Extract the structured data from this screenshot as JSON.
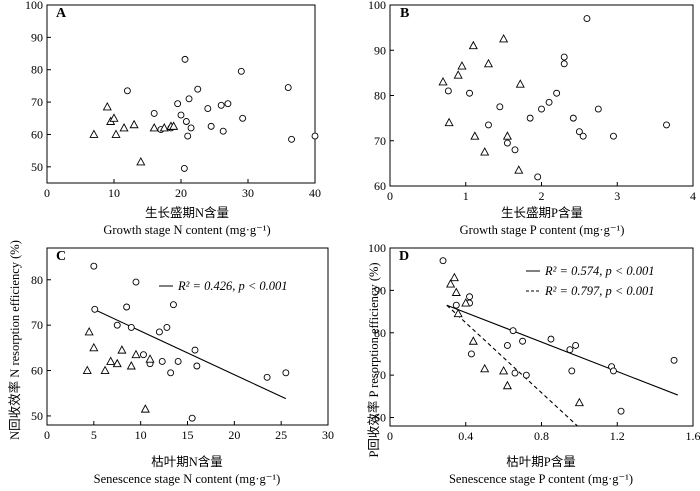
{
  "chart_data": [
    {
      "panel": "A",
      "type": "scatter",
      "xlabel_cn": "生长盛期N含量",
      "xlabel_en": "Growth stage N content (mg·g⁻¹)",
      "xlim": [
        0,
        40
      ],
      "xticks": [
        "0",
        "10",
        "20",
        "30",
        "40"
      ],
      "ylim": [
        45,
        100
      ],
      "yticks": [
        "50",
        "60",
        "70",
        "80",
        "90",
        "100"
      ],
      "series": [
        {
          "marker": "circle",
          "points": [
            [
              12,
              73.5
            ],
            [
              16,
              66.5
            ],
            [
              17,
              61.5
            ],
            [
              18.5,
              62
            ],
            [
              19.5,
              69.5
            ],
            [
              20,
              66
            ],
            [
              20.5,
              49.5
            ],
            [
              20.6,
              83.2
            ],
            [
              20.8,
              64
            ],
            [
              21,
              59.5
            ],
            [
              21.2,
              71
            ],
            [
              21.5,
              62
            ],
            [
              22.5,
              74
            ],
            [
              24,
              68
            ],
            [
              24.5,
              62.5
            ],
            [
              26,
              69
            ],
            [
              26.3,
              61
            ],
            [
              27,
              69.5
            ],
            [
              29,
              79.5
            ],
            [
              29.2,
              65
            ],
            [
              36,
              74.5
            ],
            [
              36.5,
              58.5
            ],
            [
              40,
              59.5
            ]
          ]
        },
        {
          "marker": "triangle",
          "points": [
            [
              7,
              60
            ],
            [
              9,
              68.5
            ],
            [
              9.5,
              64
            ],
            [
              10,
              65
            ],
            [
              10.3,
              60
            ],
            [
              11.5,
              62
            ],
            [
              13,
              63
            ],
            [
              14,
              51.5
            ],
            [
              16,
              62
            ],
            [
              17.5,
              62
            ],
            [
              18.5,
              62.5
            ],
            [
              18.9,
              62.5
            ]
          ]
        }
      ]
    },
    {
      "panel": "B",
      "type": "scatter",
      "xlabel_cn": "生长盛期P含量",
      "xlabel_en": "Growth stage P content (mg·g⁻¹)",
      "xlim": [
        0,
        4
      ],
      "xticks": [
        "0",
        "1",
        "2",
        "3",
        "4"
      ],
      "ylim": [
        60,
        100
      ],
      "yticks": [
        "60",
        "70",
        "80",
        "90",
        "100"
      ],
      "series": [
        {
          "marker": "circle",
          "points": [
            [
              0.77,
              81
            ],
            [
              1.05,
              80.5
            ],
            [
              1.3,
              73.5
            ],
            [
              1.45,
              77.5
            ],
            [
              1.55,
              69.5
            ],
            [
              1.65,
              68
            ],
            [
              1.85,
              75
            ],
            [
              1.95,
              62
            ],
            [
              2.0,
              77
            ],
            [
              2.1,
              78.5
            ],
            [
              2.2,
              80.5
            ],
            [
              2.3,
              88.5
            ],
            [
              2.3,
              87
            ],
            [
              2.42,
              75
            ],
            [
              2.5,
              72
            ],
            [
              2.55,
              71
            ],
            [
              2.6,
              97
            ],
            [
              2.75,
              77
            ],
            [
              2.95,
              71
            ],
            [
              3.65,
              73.5
            ]
          ]
        },
        {
          "marker": "triangle",
          "points": [
            [
              0.7,
              83
            ],
            [
              0.78,
              74
            ],
            [
              0.9,
              84.5
            ],
            [
              0.95,
              86.5
            ],
            [
              1.1,
              91
            ],
            [
              1.12,
              71
            ],
            [
              1.25,
              67.5
            ],
            [
              1.3,
              87
            ],
            [
              1.5,
              92.5
            ],
            [
              1.55,
              71
            ],
            [
              1.7,
              63.5
            ],
            [
              1.72,
              82.5
            ]
          ]
        }
      ]
    },
    {
      "panel": "C",
      "type": "scatter",
      "xlabel_cn": "枯叶期N含量",
      "xlabel_en": "Senescence stage N content (mg·g⁻¹)",
      "xlim": [
        0,
        30
      ],
      "xticks": [
        "0",
        "5",
        "10",
        "15",
        "20",
        "25",
        "30"
      ],
      "ylim": [
        48,
        87
      ],
      "yticks": [
        "50",
        "60",
        "70",
        "80"
      ],
      "legend": {
        "text": "R² = 0.426, p < 0.001"
      },
      "fit": [
        [
          5,
          73.5
        ],
        [
          25.5,
          53.8
        ]
      ],
      "series": [
        {
          "marker": "circle",
          "points": [
            [
              5.0,
              83
            ],
            [
              5.1,
              73.5
            ],
            [
              7.5,
              70
            ],
            [
              8.5,
              74
            ],
            [
              9.0,
              69.5
            ],
            [
              9.5,
              79.5
            ],
            [
              10.3,
              63.5
            ],
            [
              11.0,
              61.5
            ],
            [
              12.0,
              68.5
            ],
            [
              12.3,
              62
            ],
            [
              12.8,
              69.5
            ],
            [
              13.2,
              59.5
            ],
            [
              13.5,
              74.5
            ],
            [
              14.0,
              62
            ],
            [
              15.5,
              49.5
            ],
            [
              15.8,
              64.5
            ],
            [
              16.0,
              61
            ],
            [
              23.5,
              58.5
            ],
            [
              25.5,
              59.5
            ]
          ]
        },
        {
          "marker": "triangle",
          "points": [
            [
              4.3,
              60
            ],
            [
              4.5,
              68.5
            ],
            [
              5.0,
              65
            ],
            [
              6.2,
              60
            ],
            [
              6.8,
              62
            ],
            [
              7.5,
              61.5
            ],
            [
              8.0,
              64.5
            ],
            [
              9.0,
              61
            ],
            [
              9.5,
              63.5
            ],
            [
              10.5,
              51.5
            ],
            [
              11.0,
              62.5
            ]
          ]
        }
      ]
    },
    {
      "panel": "D",
      "type": "scatter",
      "xlabel_cn": "枯叶期P含量",
      "xlabel_en": "Senescence stage P content (mg·g⁻¹)",
      "xlim": [
        0,
        1.6
      ],
      "xticks": [
        "0",
        "0.4",
        "0.8",
        "1.2",
        "1.6"
      ],
      "ylim": [
        58,
        100
      ],
      "yticks": [
        "60",
        "70",
        "80",
        "90",
        "100"
      ],
      "legend": [
        {
          "text": "R² = 0.574, p < 0.001",
          "style": "solid"
        },
        {
          "text": "R² = 0.797, p < 0.001",
          "style": "dashed"
        }
      ],
      "fits": [
        {
          "style": "solid",
          "points": [
            [
              0.3,
              86.5
            ],
            [
              1.52,
              65.3
            ]
          ]
        },
        {
          "style": "dashed",
          "points": [
            [
              0.3,
              86.5
            ],
            [
              0.99,
              58
            ]
          ]
        }
      ],
      "series": [
        {
          "marker": "circle",
          "points": [
            [
              0.28,
              97
            ],
            [
              0.35,
              86.5
            ],
            [
              0.42,
              88.5
            ],
            [
              0.42,
              87
            ],
            [
              0.43,
              75
            ],
            [
              0.62,
              77
            ],
            [
              0.65,
              80.5
            ],
            [
              0.66,
              70.5
            ],
            [
              0.7,
              78
            ],
            [
              0.72,
              70
            ],
            [
              0.85,
              78.5
            ],
            [
              0.95,
              76
            ],
            [
              0.96,
              71
            ],
            [
              0.98,
              77
            ],
            [
              1.17,
              72
            ],
            [
              1.18,
              71
            ],
            [
              1.22,
              61.5
            ],
            [
              1.5,
              73.5
            ]
          ]
        },
        {
          "marker": "triangle",
          "points": [
            [
              0.32,
              91.5
            ],
            [
              0.34,
              93
            ],
            [
              0.35,
              89.5
            ],
            [
              0.36,
              84.5
            ],
            [
              0.4,
              87
            ],
            [
              0.44,
              78
            ],
            [
              0.5,
              71.5
            ],
            [
              0.6,
              71
            ],
            [
              0.62,
              67.5
            ],
            [
              1.0,
              63.5
            ]
          ]
        }
      ]
    }
  ],
  "ylabel_top": "N回收效率 N resorption efficiency (%)",
  "ylabel_bottom": "P回收效率 P resorption efficiency (%)"
}
